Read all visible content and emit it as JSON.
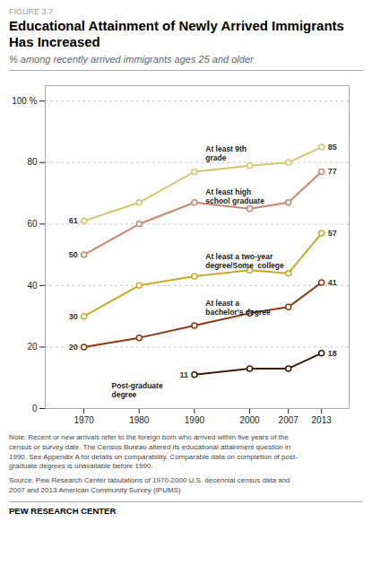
{
  "chart_data": {
    "type": "line",
    "figure_label": "FIGURE 3.7",
    "title": "Educational Attainment of Newly Arrived Immigrants\nHas Increased",
    "subtitle": "% among recently arrived immigrants ages 25 and older",
    "x": [
      1970,
      1980,
      1990,
      2000,
      2007,
      2013
    ],
    "xlim": [
      1963,
      2018
    ],
    "xticks": [
      1970,
      1980,
      1990,
      2000,
      2007,
      2013
    ],
    "ylim": [
      0,
      105
    ],
    "yticks": [
      0,
      20,
      40,
      60,
      80,
      {
        "value": 100,
        "label": "100 %"
      }
    ],
    "grid": true,
    "marker": "circle",
    "line_style": "solid",
    "series": [
      {
        "name": "At least 9th\ngrade",
        "color": "#d4c46a",
        "values": [
          61,
          67,
          77,
          79,
          80,
          85
        ],
        "value_labels": [
          "61",
          null,
          null,
          null,
          null,
          "85"
        ]
      },
      {
        "name": "At least high\nschool graduate",
        "color": "#c9876a",
        "values": [
          50,
          60,
          67,
          65,
          67,
          77
        ],
        "value_labels": [
          "50",
          null,
          null,
          null,
          null,
          "77"
        ]
      },
      {
        "name": "At least a two-year\ndegree/Some  college",
        "color": "#c8a828",
        "values": [
          30,
          40,
          43,
          45,
          44,
          57
        ],
        "value_labels": [
          "30",
          null,
          null,
          null,
          null,
          "57"
        ]
      },
      {
        "name": "At least a\nbachelor's degree",
        "color": "#8b3a0f",
        "values": [
          20,
          23,
          27,
          31,
          33,
          41
        ],
        "value_labels": [
          "20",
          null,
          null,
          null,
          null,
          "41"
        ]
      },
      {
        "name": "Post-graduate\ndegree",
        "color": "#3b1a08",
        "values": [
          null,
          null,
          11,
          13,
          13,
          18
        ],
        "value_labels": [
          null,
          null,
          "11",
          null,
          null,
          "18"
        ]
      }
    ],
    "annotations": [
      {
        "text": "At least 9th\ngrade",
        "x": 1992,
        "y": 83
      },
      {
        "text": "At least high\nschool graduate",
        "x": 1992,
        "y": 69
      },
      {
        "text": "At least a two-year\ndegree/Some  college",
        "x": 1992,
        "y": 48
      },
      {
        "text": "At least a\nbachelor's degree",
        "x": 1992,
        "y": 33
      },
      {
        "text": "Post-graduate\ndegree",
        "x": 1975,
        "y": 6
      }
    ],
    "notes": [
      "Note: Recent or new arrivals refer to the foreign born who arrived within five years of the",
      "census or survey date. The Census Bureau altered its educational attainment question in",
      "1990. See Appendix A for details on comparability. Comparable data on completion of post-",
      "graduate degrees is unavailable before 1990."
    ],
    "source": [
      "Source: Pew Research Center tabulations of 1970-2000 U.S. decennial census data and",
      "2007 and 2013 American Community Survey (IPUMS)"
    ],
    "credit": "PEW RESEARCH CENTER"
  }
}
